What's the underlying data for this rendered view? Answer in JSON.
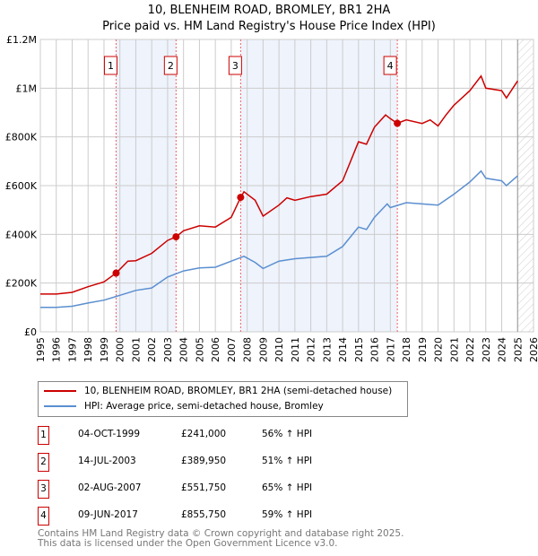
{
  "title": "10, BLENHEIM ROAD, BROMLEY, BR1 2HA",
  "subtitle": "Price paid vs. HM Land Registry's House Price Index (HPI)",
  "legend": {
    "property": "10, BLENHEIM ROAD, BROMLEY, BR1 2HA (semi-detached house)",
    "hpi": "HPI: Average price, semi-detached house, Bromley"
  },
  "colors": {
    "property": "#cc0000",
    "hpi": "#5b8fd0",
    "shade": "#eef3fc"
  },
  "sales": [
    {
      "n": "1",
      "date": "04-OCT-1999",
      "price": "£241,000",
      "hpi": "56% ↑ HPI"
    },
    {
      "n": "2",
      "date": "14-JUL-2003",
      "price": "£389,950",
      "hpi": "51% ↑ HPI"
    },
    {
      "n": "3",
      "date": "02-AUG-2007",
      "price": "£551,750",
      "hpi": "65% ↑ HPI"
    },
    {
      "n": "4",
      "date": "09-JUN-2017",
      "price": "£855,750",
      "hpi": "59% ↑ HPI"
    }
  ],
  "footer": {
    "line1": "Contains HM Land Registry data © Crown copyright and database right 2025.",
    "line2": "This data is licensed under the Open Government Licence v3.0."
  },
  "chart_data": {
    "type": "line",
    "xlim": [
      1995,
      2026
    ],
    "ylim": [
      0,
      1200000
    ],
    "xticks": [
      "1995",
      "1996",
      "1997",
      "1998",
      "1999",
      "2000",
      "2001",
      "2002",
      "2003",
      "2004",
      "2005",
      "2006",
      "2007",
      "2008",
      "2009",
      "2010",
      "2011",
      "2012",
      "2013",
      "2014",
      "2015",
      "2016",
      "2017",
      "2018",
      "2019",
      "2020",
      "2021",
      "2022",
      "2023",
      "2024",
      "2025",
      "2026"
    ],
    "yticks": [
      {
        "v": 0,
        "l": "£0"
      },
      {
        "v": 200000,
        "l": "£200K"
      },
      {
        "v": 400000,
        "l": "£400K"
      },
      {
        "v": 600000,
        "l": "£600K"
      },
      {
        "v": 800000,
        "l": "£800K"
      },
      {
        "v": 1000000,
        "l": "£1M"
      },
      {
        "v": 1200000,
        "l": "£1.2M"
      }
    ],
    "shaded": [
      [
        1999.76,
        2003.53
      ],
      [
        2007.59,
        2017.44
      ]
    ],
    "forecast_from": 2025.0,
    "sale_points": [
      {
        "x": 1999.76,
        "y": 241000
      },
      {
        "x": 2003.53,
        "y": 389950
      },
      {
        "x": 2007.59,
        "y": 551750
      },
      {
        "x": 2017.44,
        "y": 855750
      }
    ],
    "series": [
      {
        "name": "property",
        "x": [
          1995,
          1996,
          1997,
          1998,
          1999,
          1999.76,
          2000.5,
          2001,
          2002,
          2003,
          2003.53,
          2004,
          2005,
          2006,
          2007,
          2007.59,
          2007.8,
          2008.5,
          2009,
          2010,
          2010.5,
          2011,
          2012,
          2013,
          2014,
          2014.5,
          2015,
          2015.5,
          2016,
          2016.7,
          2017,
          2017.44,
          2018,
          2019,
          2019.5,
          2020,
          2020.5,
          2021,
          2022,
          2022.7,
          2023,
          2024,
          2024.3,
          2025
        ],
        "y": [
          155000,
          155000,
          162000,
          185000,
          205000,
          241000,
          290000,
          292000,
          322000,
          375000,
          389950,
          415000,
          435000,
          430000,
          470000,
          551750,
          575000,
          540000,
          475000,
          520000,
          550000,
          540000,
          555000,
          565000,
          620000,
          700000,
          780000,
          770000,
          840000,
          890000,
          875000,
          855750,
          870000,
          855000,
          870000,
          845000,
          890000,
          930000,
          990000,
          1050000,
          1000000,
          990000,
          960000,
          1030000
        ]
      },
      {
        "name": "hpi",
        "x": [
          1995,
          1996,
          1997,
          1998,
          1999,
          2000,
          2001,
          2002,
          2003,
          2004,
          2005,
          2006,
          2007,
          2007.8,
          2008.5,
          2009,
          2010,
          2011,
          2012,
          2013,
          2014,
          2015,
          2015.5,
          2016,
          2016.8,
          2017,
          2018,
          2019,
          2020,
          2021,
          2022,
          2022.7,
          2023,
          2024,
          2024.3,
          2025
        ],
        "y": [
          100000,
          100000,
          105000,
          118000,
          130000,
          150000,
          170000,
          180000,
          225000,
          250000,
          262000,
          265000,
          290000,
          310000,
          285000,
          260000,
          290000,
          300000,
          305000,
          310000,
          350000,
          430000,
          420000,
          470000,
          525000,
          510000,
          530000,
          525000,
          520000,
          565000,
          615000,
          660000,
          630000,
          620000,
          600000,
          640000
        ]
      }
    ]
  }
}
